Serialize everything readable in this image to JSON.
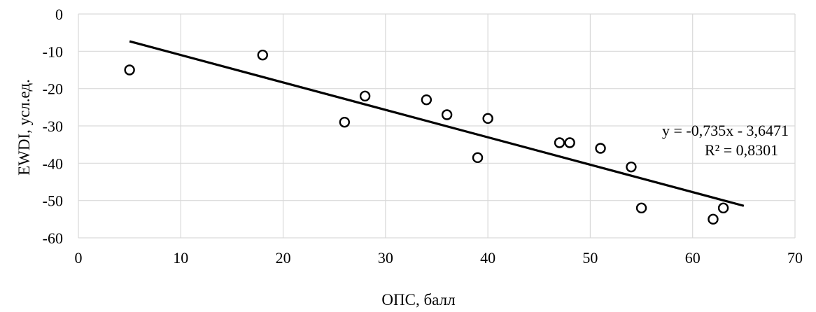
{
  "chart_data": {
    "type": "scatter",
    "xlabel": "ОПС, балл",
    "ylabel": "EWDI, усл.ед.",
    "xlim": [
      0,
      70
    ],
    "ylim": [
      -60,
      0
    ],
    "x_ticks": [
      0,
      10,
      20,
      30,
      40,
      50,
      60,
      70
    ],
    "y_ticks": [
      0,
      -10,
      -20,
      -30,
      -40,
      -50,
      -60
    ],
    "grid": true,
    "points": [
      {
        "x": 5,
        "y": -15
      },
      {
        "x": 18,
        "y": -11
      },
      {
        "x": 26,
        "y": -29
      },
      {
        "x": 28,
        "y": -22
      },
      {
        "x": 34,
        "y": -23
      },
      {
        "x": 36,
        "y": -27
      },
      {
        "x": 39,
        "y": -38.5
      },
      {
        "x": 40,
        "y": -28
      },
      {
        "x": 47,
        "y": -34.5
      },
      {
        "x": 48,
        "y": -34.5
      },
      {
        "x": 51,
        "y": -36
      },
      {
        "x": 54,
        "y": -41
      },
      {
        "x": 55,
        "y": -52
      },
      {
        "x": 62,
        "y": -55
      },
      {
        "x": 63,
        "y": -52
      }
    ],
    "trendline": {
      "type": "linear",
      "slope": -0.735,
      "intercept": -3.6471,
      "x_range": [
        5,
        65
      ],
      "equation": "y = -0,735x  - 3,6471",
      "r_squared": "R² = 0,8301"
    }
  }
}
